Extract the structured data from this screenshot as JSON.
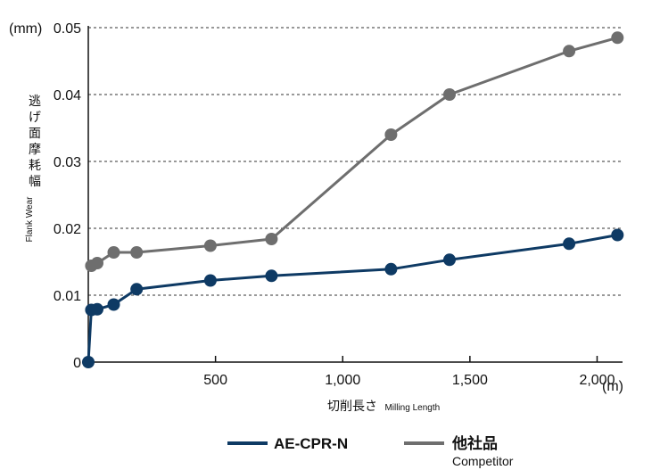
{
  "chart_data": {
    "type": "line",
    "ylabel": {
      "jp_lines": [
        "逃",
        "げ",
        "面",
        "摩",
        "耗",
        "幅"
      ],
      "en": "Flank Wear"
    },
    "y_unit": "(mm)",
    "xlabel": {
      "jp": "切削長さ",
      "en": "Milling Length"
    },
    "x_unit": "(m)",
    "xlim": [
      0,
      2100
    ],
    "ylim": [
      0,
      0.05
    ],
    "x_ticks": [
      {
        "value": 500,
        "label": "500"
      },
      {
        "value": 1000,
        "label": "1,000"
      },
      {
        "value": 1500,
        "label": "1,500"
      },
      {
        "value": 2000,
        "label": "2,000"
      }
    ],
    "y_ticks": [
      {
        "value": 0,
        "label": "0"
      },
      {
        "value": 0.01,
        "label": "0.01"
      },
      {
        "value": 0.02,
        "label": "0.02"
      },
      {
        "value": 0.03,
        "label": "0.03"
      },
      {
        "value": 0.04,
        "label": "0.04"
      },
      {
        "value": 0.05,
        "label": "0.05"
      }
    ],
    "grid": "horizontal-dashed",
    "legend_position": "bottom",
    "series": [
      {
        "name": "AE-CPR-N",
        "color": "#0e3a64",
        "x": [
          0,
          12,
          35,
          100,
          190,
          480,
          720,
          1190,
          1420,
          1890,
          2080
        ],
        "y": [
          0.0,
          0.0078,
          0.0079,
          0.0086,
          0.0109,
          0.0122,
          0.0129,
          0.0139,
          0.0153,
          0.0177,
          0.019
        ]
      },
      {
        "name": "他社品",
        "subtitle": "Competitor",
        "color": "#6e6e6e",
        "x": [
          12,
          35,
          100,
          190,
          480,
          720,
          1190,
          1420,
          1890,
          2080
        ],
        "y": [
          0.0144,
          0.0148,
          0.0164,
          0.0164,
          0.0174,
          0.0184,
          0.034,
          0.04,
          0.0465,
          0.0485
        ]
      }
    ]
  }
}
